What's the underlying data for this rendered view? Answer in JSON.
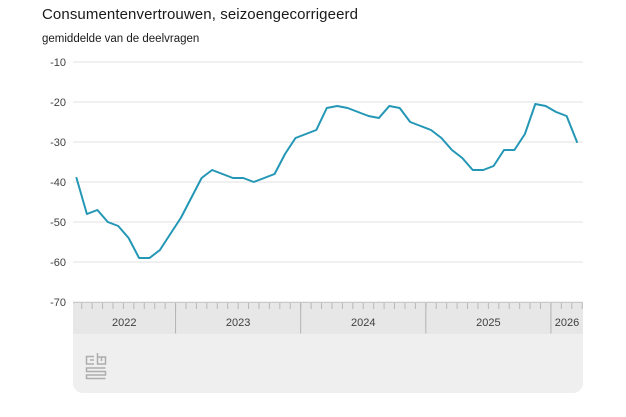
{
  "header": {
    "title": "Consumentenvertrouwen, seizoengecorrigeerd",
    "subtitle": "gemiddelde van de deelvragen"
  },
  "chart_data": {
    "type": "line",
    "title": "Consumentenvertrouwen, seizoengecorrigeerd",
    "subtitle": "gemiddelde van de deelvragen",
    "xlabel": "",
    "ylabel": "",
    "frequency": "monthly",
    "x": [
      "2022-03",
      "2022-04",
      "2022-05",
      "2022-06",
      "2022-07",
      "2022-08",
      "2022-09",
      "2022-10",
      "2022-11",
      "2022-12",
      "2023-01",
      "2023-02",
      "2023-03",
      "2023-04",
      "2023-05",
      "2023-06",
      "2023-07",
      "2023-08",
      "2023-09",
      "2023-10",
      "2023-11",
      "2023-12",
      "2024-01",
      "2024-02",
      "2024-03",
      "2024-04",
      "2024-05",
      "2024-06",
      "2024-07",
      "2024-08",
      "2024-09",
      "2024-10",
      "2024-11",
      "2024-12",
      "2025-01",
      "2025-02",
      "2025-03",
      "2025-04",
      "2025-05",
      "2025-06",
      "2025-07",
      "2025-08",
      "2025-09",
      "2025-10",
      "2025-11",
      "2025-12",
      "2026-01",
      "2026-02",
      "2026-03"
    ],
    "values": [
      -39,
      -48,
      -47,
      -50,
      -51,
      -54,
      -59,
      -59,
      -57,
      -53,
      -49,
      -44,
      -39,
      -37,
      -38,
      -39,
      -39,
      -40,
      -39,
      -38,
      -33,
      -29,
      -28,
      -27,
      -21.5,
      -21,
      -21.5,
      -22.5,
      -23.5,
      -24,
      -21,
      -21.5,
      -25,
      -26,
      -27,
      -29,
      -32,
      -34,
      -37,
      -37,
      -36,
      -32,
      -32,
      -28,
      -20.5,
      -21,
      -22.5,
      -23.5,
      -30
    ],
    "ylim": [
      -70,
      -10
    ],
    "yticks": [
      -10,
      -20,
      -30,
      -40,
      -50,
      -60,
      -70
    ],
    "grid": "horizontal-only",
    "legend": "none",
    "line_color": "#2397b5"
  },
  "timeline": {
    "year_labels": [
      "2022",
      "2023",
      "2024",
      "2025",
      "2026"
    ]
  },
  "footer": {
    "logo": "cbs-logo"
  },
  "colors": {
    "line": "#2397b5",
    "grid": "#e2e2e2",
    "axis_text": "#404040",
    "band_bg": "#e7e7e7",
    "band_border": "#b3b3b3",
    "footer_bg": "#efefef",
    "logo_gray": "#adadad"
  }
}
